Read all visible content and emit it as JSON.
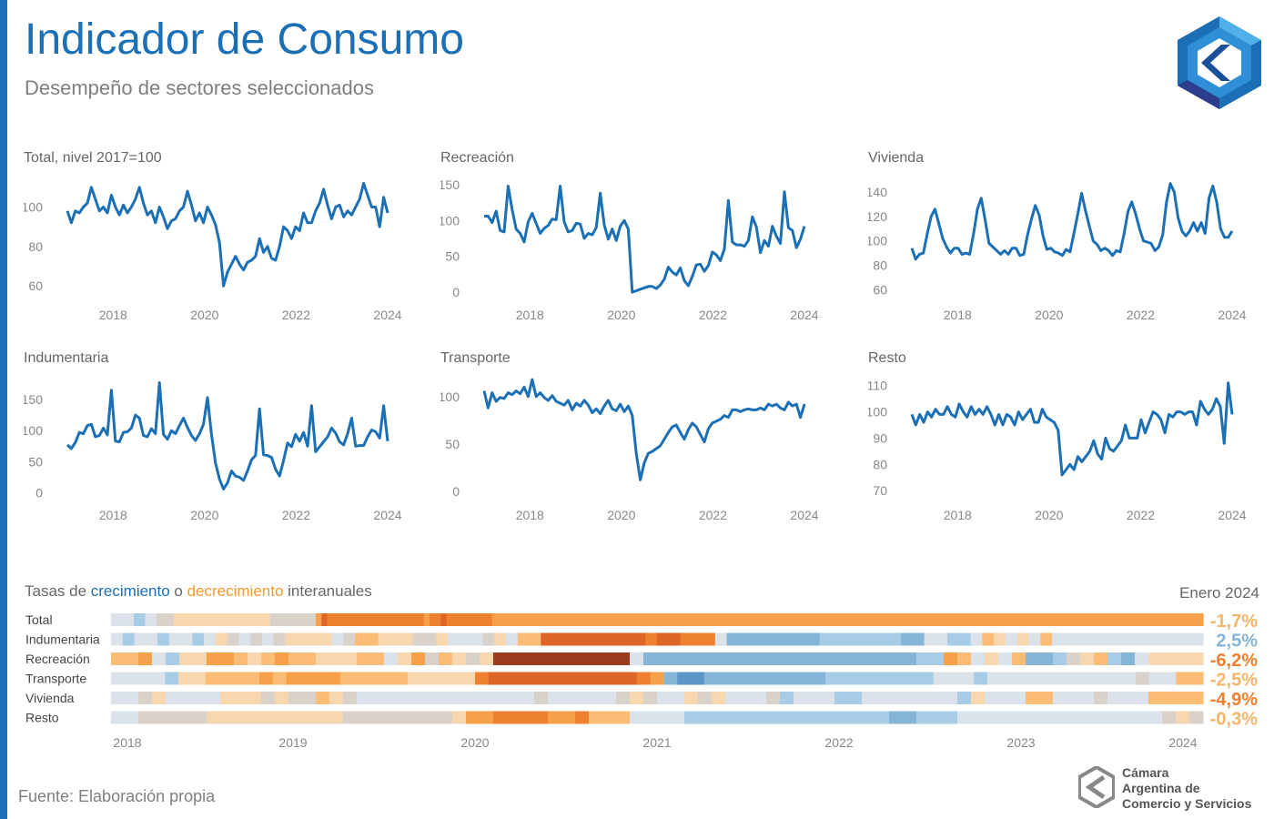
{
  "header": {
    "title": "Indicador de Consumo",
    "subtitle": "Desempeño de sectores seleccionados"
  },
  "colors": {
    "accent": "#1a6fb5",
    "line": "#1a6fb5",
    "decrease_label": "#f39a2d"
  },
  "heatmap_header": {
    "part1": "Tasas de ",
    "part_growth": "crecimiento",
    "part2": " o ",
    "part_decline": "decrecimiento",
    "part3": " interanuales",
    "period": "Enero 2024"
  },
  "footer": {
    "source": "Fuente: Elaboración propia",
    "org_line1": "Cámara",
    "org_line2": "Argentina de",
    "org_line3": "Comercio y Servicios"
  },
  "chart_data": [
    {
      "type": "line",
      "title": "Total, nivel 2017=100",
      "x_start": "2017-01",
      "x_end": "2024-01",
      "x_ticks": [
        "2018",
        "2020",
        "2022",
        "2024"
      ],
      "y_ticks": [
        60,
        80,
        100
      ],
      "ylim": [
        55,
        115
      ],
      "values": [
        98,
        92,
        98,
        97,
        100,
        102,
        110,
        104,
        98,
        100,
        97,
        106,
        100,
        96,
        101,
        97,
        100,
        104,
        110,
        102,
        96,
        98,
        92,
        100,
        95,
        89,
        93,
        94,
        98,
        100,
        108,
        101,
        93,
        97,
        92,
        100,
        96,
        91,
        82,
        60,
        67,
        71,
        75,
        71,
        68,
        72,
        73,
        75,
        84,
        77,
        80,
        74,
        73,
        80,
        90,
        88,
        84,
        90,
        88,
        97,
        92,
        92,
        98,
        102,
        109,
        101,
        94,
        100,
        101,
        95,
        98,
        96,
        100,
        104,
        112,
        106,
        100,
        100,
        90,
        105,
        97
      ],
      "grid": false
    },
    {
      "type": "line",
      "title": "Recreación",
      "x_start": "2017-01",
      "x_end": "2024-01",
      "x_ticks": [
        "2018",
        "2020",
        "2022",
        "2024"
      ],
      "y_ticks": [
        0,
        50,
        100,
        150
      ],
      "ylim": [
        -5,
        160
      ],
      "values": [
        106,
        106,
        97,
        113,
        86,
        84,
        148,
        115,
        88,
        82,
        70,
        98,
        110,
        96,
        82,
        89,
        93,
        102,
        101,
        148,
        98,
        84,
        86,
        96,
        95,
        75,
        82,
        80,
        90,
        138,
        94,
        74,
        88,
        72,
        92,
        100,
        88,
        0,
        2,
        4,
        6,
        8,
        8,
        5,
        10,
        18,
        35,
        28,
        24,
        34,
        16,
        9,
        22,
        38,
        39,
        29,
        37,
        56,
        52,
        44,
        60,
        128,
        70,
        66,
        66,
        64,
        72,
        105,
        91,
        55,
        72,
        64,
        92,
        78,
        68,
        140,
        90,
        86,
        62,
        74,
        92
      ],
      "grid": false
    },
    {
      "type": "line",
      "title": "Vivienda",
      "x_start": "2017-01",
      "x_end": "2024-01",
      "x_ticks": [
        "2018",
        "2020",
        "2022",
        "2024"
      ],
      "y_ticks": [
        60,
        80,
        100,
        120,
        140
      ],
      "ylim": [
        55,
        152
      ],
      "values": [
        94,
        85,
        89,
        90,
        106,
        120,
        126,
        114,
        102,
        95,
        90,
        94,
        94,
        89,
        90,
        89,
        106,
        126,
        135,
        117,
        98,
        95,
        92,
        89,
        92,
        89,
        94,
        94,
        88,
        89,
        105,
        118,
        129,
        121,
        104,
        93,
        94,
        91,
        90,
        88,
        93,
        91,
        106,
        122,
        139,
        125,
        112,
        100,
        97,
        92,
        94,
        92,
        88,
        92,
        91,
        106,
        124,
        132,
        122,
        110,
        100,
        99,
        98,
        92,
        95,
        105,
        132,
        147,
        140,
        119,
        108,
        104,
        108,
        115,
        108,
        115,
        106,
        135,
        145,
        132,
        110,
        103,
        103,
        108
      ],
      "grid": false
    },
    {
      "type": "line",
      "title": "Indumentaria",
      "x_start": "2017-01",
      "x_end": "2024-01",
      "x_ticks": [
        "2018",
        "2020",
        "2022",
        "2024"
      ],
      "y_ticks": [
        0,
        50,
        100,
        150
      ],
      "ylim": [
        -5,
        185
      ],
      "values": [
        77,
        71,
        81,
        97,
        95,
        108,
        110,
        90,
        92,
        104,
        93,
        165,
        83,
        82,
        97,
        98,
        104,
        125,
        120,
        92,
        90,
        103,
        95,
        177,
        94,
        86,
        100,
        95,
        108,
        120,
        105,
        92,
        84,
        95,
        110,
        153,
        94,
        48,
        22,
        6,
        16,
        35,
        27,
        25,
        20,
        35,
        53,
        60,
        135,
        61,
        60,
        57,
        38,
        27,
        52,
        80,
        74,
        94,
        83,
        97,
        75,
        140,
        66,
        74,
        82,
        90,
        104,
        96,
        82,
        77,
        95,
        120,
        75,
        76,
        76,
        90,
        101,
        98,
        88,
        140,
        83
      ],
      "grid": false
    },
    {
      "type": "line",
      "title": "Transporte",
      "x_start": "2017-01",
      "x_end": "2024-01",
      "x_ticks": [
        "2018",
        "2020",
        "2022",
        "2024"
      ],
      "y_ticks": [
        0,
        50,
        100
      ],
      "ylim": [
        -5,
        120
      ],
      "values": [
        106,
        88,
        104,
        95,
        99,
        98,
        104,
        102,
        106,
        103,
        110,
        100,
        118,
        100,
        104,
        99,
        96,
        101,
        95,
        93,
        91,
        96,
        86,
        93,
        90,
        96,
        91,
        83,
        87,
        82,
        90,
        96,
        87,
        85,
        92,
        84,
        90,
        80,
        40,
        12,
        30,
        40,
        42,
        45,
        48,
        55,
        62,
        68,
        70,
        62,
        55,
        65,
        72,
        68,
        60,
        52,
        66,
        72,
        74,
        76,
        80,
        78,
        86,
        86,
        84,
        86,
        87,
        86,
        86,
        88,
        86,
        92,
        90,
        92,
        88,
        86,
        94,
        90,
        92,
        78,
        92
      ],
      "grid": false
    },
    {
      "type": "line",
      "title": "Resto",
      "x_start": "2017-01",
      "x_end": "2024-01",
      "x_ticks": [
        "2018",
        "2020",
        "2022",
        "2024"
      ],
      "y_ticks": [
        70,
        80,
        90,
        100,
        110
      ],
      "ylim": [
        68,
        113
      ],
      "values": [
        99,
        95,
        99,
        96,
        100,
        98,
        101,
        99,
        99,
        102,
        99,
        98,
        103,
        100,
        98,
        102,
        99,
        101,
        99,
        102,
        99,
        95,
        99,
        95,
        99,
        98,
        95,
        100,
        97,
        99,
        101,
        96,
        96,
        101,
        98,
        97,
        96,
        93,
        76,
        78,
        80,
        78,
        83,
        81,
        83,
        85,
        89,
        84,
        82,
        90,
        86,
        85,
        87,
        89,
        95,
        90,
        90,
        90,
        97,
        92,
        96,
        100,
        99,
        97,
        92,
        99,
        98,
        100,
        100,
        99,
        100,
        100,
        95,
        104,
        101,
        99,
        101,
        105,
        102,
        88,
        111,
        99
      ],
      "grid": false
    },
    {
      "type": "heatmap",
      "rows": [
        "Total",
        "Indumentaria",
        "Recreación",
        "Transporte",
        "Vivienda",
        "Resto"
      ],
      "x_ticks": [
        "2018",
        "2019",
        "2020",
        "2021",
        "2022",
        "2023",
        "2024"
      ],
      "x_start": "2018-01",
      "x_end": "2024-01",
      "color_scale": "orange = decrecimiento, blue = crecimiento",
      "last_values": [
        "-1,7%",
        "2,5%",
        "-6,2%",
        "-2,5%",
        "-4,9%",
        "-0,3%"
      ],
      "values": [
        [
          1,
          1,
          1,
          1,
          2,
          2,
          1,
          1,
          0,
          0,
          0,
          -1,
          -1,
          -1,
          -1,
          -1,
          -1,
          -1,
          -1,
          -1,
          -1,
          -1,
          -1,
          -1,
          -1,
          -1,
          -1,
          -1,
          0,
          0,
          0,
          0,
          0,
          0,
          0,
          0,
          -3,
          -5,
          -4,
          -4,
          -4,
          -4,
          -4,
          -4,
          -4,
          -4,
          -4,
          -4,
          -4,
          -4,
          -4,
          -4,
          -4,
          -4,
          -4,
          -3,
          -4,
          -4,
          -5,
          -4,
          -4,
          -4,
          -4,
          -4,
          -4,
          -4,
          -4,
          -3,
          -3,
          -3,
          -3,
          -3,
          -3,
          -3,
          -3,
          -3,
          -3,
          -3,
          -3,
          -3,
          -3,
          -3,
          -3,
          -3,
          -3,
          -3,
          -3,
          -3,
          -3,
          -3,
          -3,
          -3,
          -3,
          -3,
          -3,
          -3,
          -3,
          -3,
          -3,
          -3,
          -3,
          -3,
          -3,
          -3,
          -3,
          -3,
          -3,
          -3,
          -3,
          -3,
          -3,
          -3,
          -3,
          -3,
          -3,
          -3,
          -3,
          -3,
          -3,
          -3,
          -3,
          -3,
          -3,
          -3,
          -3,
          -3,
          -3,
          -3,
          -3,
          -3,
          -3,
          -3,
          -3,
          -3,
          -3,
          -3,
          -3,
          -3,
          -3,
          -3,
          -3,
          -3,
          -3,
          -3,
          -3,
          -3,
          -3,
          -3,
          -3,
          -3,
          -3,
          -3,
          -3,
          -3,
          -3,
          -3,
          -3,
          -3,
          -3,
          -3,
          -3,
          -3,
          -3,
          -3,
          -3,
          -3,
          -3,
          -3,
          -3,
          -3,
          -3,
          -3,
          -3,
          -3,
          -3,
          -3,
          -3,
          -3,
          -3,
          -3,
          -3,
          -3,
          -3,
          -3,
          -3,
          -3,
          -3,
          -3,
          -3,
          -3,
          -3,
          -3
        ],
        [
          1,
          2,
          1,
          1,
          2,
          1,
          1,
          2,
          1,
          -1,
          0,
          1,
          0,
          1,
          0,
          -1,
          -1,
          -1,
          -1,
          1,
          0,
          -2,
          -2,
          -1,
          -1,
          -1,
          0,
          0,
          -1,
          1,
          1,
          1,
          0,
          -1,
          1,
          -2,
          -2,
          -5,
          -5,
          -5,
          -5,
          -5,
          -5,
          -5,
          -5,
          -5,
          -4,
          -5,
          -5,
          -4,
          -4,
          -4,
          1,
          3,
          3,
          3,
          3,
          3,
          3,
          3,
          3,
          2,
          2,
          2,
          2,
          2,
          2,
          2,
          3,
          3,
          1,
          1,
          2,
          2,
          1,
          -2,
          -1,
          1,
          -1,
          1,
          -2,
          1,
          1,
          1,
          1,
          1,
          1,
          1,
          1,
          1,
          1,
          1,
          1,
          1
        ],
        [
          -2,
          -2,
          -3,
          1,
          2,
          -1,
          -1,
          -3,
          -3,
          -2,
          -1,
          -2,
          -3,
          -2,
          -2,
          -1,
          -1,
          -1,
          -2,
          -2,
          1,
          -1,
          -3,
          0,
          -2,
          -1,
          0,
          -1,
          -6,
          -6,
          -6,
          -6,
          -6,
          -6,
          -6,
          -6,
          -6,
          -6,
          1,
          3,
          3,
          3,
          3,
          3,
          3,
          3,
          3,
          3,
          3,
          3,
          3,
          3,
          3,
          3,
          3,
          3,
          3,
          3,
          3,
          2,
          2,
          -3,
          -2,
          1,
          -1,
          1,
          -2,
          3,
          3,
          2,
          0,
          -1,
          -2,
          2,
          3,
          1,
          -1,
          -1,
          -1,
          -1
        ],
        [
          1,
          1,
          1,
          1,
          2,
          -1,
          -1,
          -2,
          -2,
          -2,
          -2,
          -3,
          -2,
          -3,
          -3,
          -3,
          -3,
          -2,
          -2,
          -2,
          -2,
          -2,
          -1,
          -1,
          -1,
          -1,
          -1,
          -4,
          -5,
          -5,
          -5,
          -5,
          -5,
          -5,
          -5,
          -5,
          -5,
          -5,
          -5,
          -4,
          -3,
          3,
          4,
          4,
          3,
          3,
          3,
          3,
          3,
          3,
          3,
          3,
          3,
          2,
          2,
          2,
          2,
          2,
          2,
          2,
          2,
          1,
          1,
          1,
          2,
          1,
          1,
          1,
          1,
          1,
          1,
          1,
          1,
          1,
          1,
          1,
          0,
          1,
          1,
          -2,
          -2
        ],
        [
          1,
          1,
          0,
          -1,
          1,
          1,
          1,
          1,
          -1,
          -1,
          -1,
          0,
          -1,
          0,
          0,
          -2,
          -1,
          0,
          1,
          1,
          1,
          1,
          1,
          1,
          1,
          1,
          1,
          1,
          1,
          1,
          1,
          0,
          1,
          1,
          1,
          1,
          1,
          0,
          -1,
          0,
          1,
          1,
          -1,
          0,
          -1,
          1,
          1,
          1,
          0,
          2,
          1,
          1,
          1,
          2,
          2,
          1,
          1,
          1,
          1,
          1,
          1,
          1,
          2,
          -1,
          1,
          1,
          1,
          -2,
          -2,
          1,
          1,
          1,
          0,
          1,
          1,
          1,
          -2,
          -2,
          -2,
          -2
        ],
        [
          1,
          1,
          0,
          0,
          0,
          0,
          0,
          -1,
          -1,
          -1,
          -1,
          -1,
          -1,
          -1,
          -1,
          -1,
          -1,
          0,
          0,
          0,
          0,
          0,
          0,
          0,
          0,
          -1,
          -3,
          -3,
          -4,
          -4,
          -4,
          -4,
          -3,
          -3,
          -4,
          -2,
          -2,
          -2,
          1,
          1,
          1,
          1,
          2,
          2,
          2,
          2,
          2,
          2,
          2,
          2,
          2,
          2,
          2,
          2,
          2,
          2,
          2,
          3,
          3,
          2,
          2,
          2,
          1,
          1,
          1,
          1,
          1,
          1,
          1,
          1,
          1,
          1,
          1,
          1,
          1,
          1,
          1,
          0,
          -1,
          0
        ]
      ]
    }
  ]
}
